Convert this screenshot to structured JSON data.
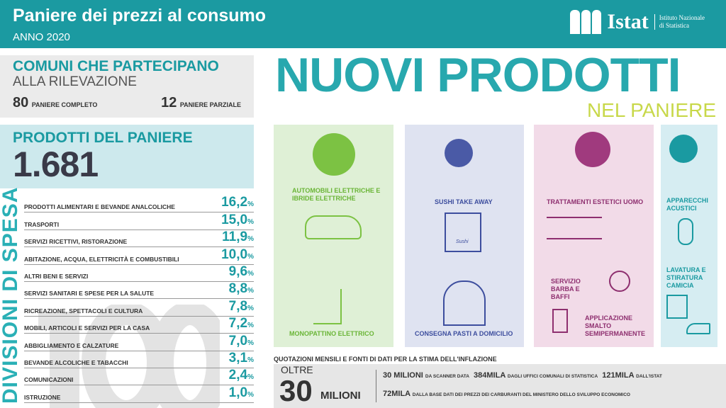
{
  "header": {
    "title": "Paniere dei prezzi al consumo",
    "subtitle": "ANNO 2020",
    "logo": "Istat",
    "logo_sub1": "Istituto Nazionale",
    "logo_sub2": "di Statistica",
    "color": "#1b9aa1"
  },
  "comuni": {
    "title": "COMUNI CHE PARTECIPANO",
    "subtitle": "ALLA RILEVAZIONE",
    "completo_n": "80",
    "completo_label": "PANIERE COMPLETO",
    "parziale_n": "12",
    "parziale_label": "PANIERE PARZIALE"
  },
  "prodotti": {
    "title": "PRODOTTI DEL PANIERE",
    "value": "1.681"
  },
  "divisioni": {
    "title": "DIVISIONI DI SPESA",
    "total": "100",
    "items": [
      {
        "label": "PRODOTTI ALIMENTARI E BEVANDE ANALCOLICHE",
        "value": "16,2"
      },
      {
        "label": "TRASPORTI",
        "value": "15,0"
      },
      {
        "label": "SERVIZI RICETTIVI, RISTORAZIONE",
        "value": "11,9"
      },
      {
        "label": "ABITAZIONE, ACQUA, ELETTRICITÀ E COMBUSTIBILI",
        "value": "10,0"
      },
      {
        "label": "ALTRI BENI E SERVIZI",
        "value": "9,6"
      },
      {
        "label": "SERVIZI SANITARI E SPESE PER LA SALUTE",
        "value": "8,8"
      },
      {
        "label": "RICREAZIONE, SPETTACOLI E CULTURA",
        "value": "7,8"
      },
      {
        "label": "MOBILI, ARTICOLI E SERVIZI PER LA CASA",
        "value": "7,2"
      },
      {
        "label": "ABBIGLIAMENTO E CALZATURE",
        "value": "7,0"
      },
      {
        "label": "BEVANDE ALCOLICHE E TABACCHI",
        "value": "3,1"
      },
      {
        "label": "COMUNICAZIONI",
        "value": "2,4"
      },
      {
        "label": "ISTRUZIONE",
        "value": "1,0"
      }
    ],
    "unit": "%"
  },
  "nuovi": {
    "title": "NUOVI PRODOTTI",
    "subtitle": "NEL PANIERE",
    "green": {
      "item1": "AUTOMOBILI ELETTRICHE E IBRIDE ELETTRICHE",
      "item2": "MONOPATTINO ELETTRICO"
    },
    "blue": {
      "item1": "SUSHI TAKE AWAY",
      "item2": "CONSEGNA PASTI A DOMICILIO",
      "bag_text": "Sushi"
    },
    "pink": {
      "item1": "TRATTAMENTI ESTETICI UOMO",
      "item2": "SERVIZIO BARBA E BAFFI",
      "item3": "APPLICAZIONE SMALTO SEMIPERMANENTE"
    },
    "cyan": {
      "item1": "APPARECCHI ACUSTICI",
      "item2": "LAVATURA E STIRATURA CAMICIA"
    }
  },
  "quotazioni": {
    "caption": "QUOTAZIONI MENSILI E FONTI DI DATI PER LA STIMA DELL'INFLAZIONE",
    "oltre": "OLTRE",
    "big": "30",
    "big_unit": "MILIONI",
    "s1_n": "30 MILIONI",
    "s1_l": "DA SCANNER DATA",
    "s2_n": "384MILA",
    "s2_l": "DAGLI UFFICI COMUNALI DI STATISTICA",
    "s3_n": "121MILA",
    "s3_l": "DALL'ISTAT",
    "s4_n": "72MILA",
    "s4_l": "DALLA BASE DATI DEI PREZZI DEI CARBURANTI DEL MINISTERO DELLO SVILUPPO ECONOMICO"
  }
}
